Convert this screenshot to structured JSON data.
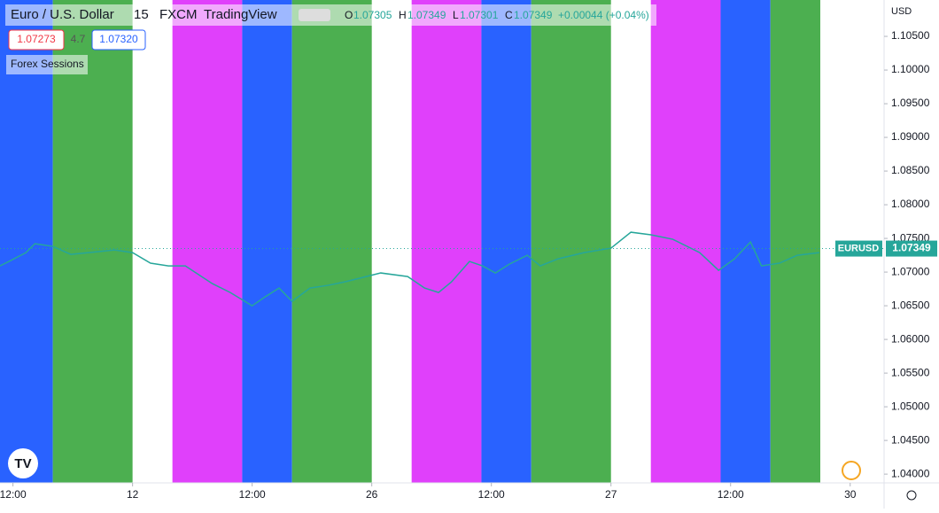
{
  "chart_data": {
    "type": "line",
    "symbol": "Euro / U.S. Dollar",
    "interval": "15",
    "exchange": "FXCM",
    "brand": "TradingView",
    "ohlc": {
      "o_label": "O",
      "o": "1.07305",
      "h_label": "H",
      "h": "1.07349",
      "l_label": "L",
      "l": "1.07301",
      "c_label": "C",
      "c": "1.07349",
      "change": "+0.00044 (+0.04%)"
    },
    "bid": "1.07273",
    "spread": "4.7",
    "ask": "1.07320",
    "indicator": "Forex Sessions",
    "currency": "USD",
    "ticker": "EURUSD",
    "last_price": 1.07349,
    "color": "#26a69a",
    "sessions": [
      {
        "start": -2,
        "end": 4,
        "color": "#2962ff"
      },
      {
        "start": 4,
        "end": 12,
        "color": "#4caf50"
      },
      {
        "start": 16,
        "end": 23,
        "color": "#e040fb"
      },
      {
        "start": 23,
        "end": 28,
        "color": "#2962ff"
      },
      {
        "start": 28,
        "end": 36,
        "color": "#4caf50"
      },
      {
        "start": 40,
        "end": 47,
        "color": "#e040fb"
      },
      {
        "start": 47,
        "end": 52,
        "color": "#2962ff"
      },
      {
        "start": 52,
        "end": 60,
        "color": "#4caf50"
      },
      {
        "start": 64,
        "end": 71,
        "color": "#e040fb"
      },
      {
        "start": 71,
        "end": 76,
        "color": "#2962ff"
      },
      {
        "start": 76,
        "end": 81,
        "color": "#4caf50"
      }
    ],
    "x": [
      -1.3,
      -0.4,
      1.3,
      2.2,
      4,
      5.8,
      7.6,
      10.2,
      12,
      13.8,
      15.6,
      17.3,
      20,
      21.8,
      24,
      25.3,
      26.7,
      28,
      29.8,
      31.6,
      33.3,
      35.1,
      36.9,
      39.6,
      41.3,
      42.7,
      44,
      45.8,
      47.1,
      48.4,
      49.8,
      51.6,
      52.9,
      54.7,
      57.3,
      60,
      62,
      64,
      66.2,
      68.9,
      70.8,
      72.4,
      74,
      75.1,
      76.9,
      78.7,
      80.9
    ],
    "values": [
      1.07092,
      1.07158,
      1.07289,
      1.07421,
      1.07382,
      1.07263,
      1.07289,
      1.07329,
      1.07289,
      1.07132,
      1.07092,
      1.07092,
      1.06829,
      1.06697,
      1.065,
      1.06632,
      1.06763,
      1.06566,
      1.06763,
      1.06803,
      1.06855,
      1.06921,
      1.06987,
      1.06934,
      1.06763,
      1.06697,
      1.06855,
      1.07158,
      1.07092,
      1.06987,
      1.07118,
      1.0725,
      1.07092,
      1.07197,
      1.07289,
      1.07355,
      1.07592,
      1.07553,
      1.07487,
      1.07289,
      1.07026,
      1.07197,
      1.07447,
      1.07092,
      1.07132,
      1.0725,
      1.07289
    ],
    "xlim": [
      -1.3,
      87.4
    ],
    "xticks": [
      {
        "value": 0,
        "label": "12:00"
      },
      12,
      {
        "value": 24,
        "label": "12:00"
      },
      {
        "value": 36,
        "label": "26"
      },
      {
        "value": 48,
        "label": "12:00"
      },
      {
        "value": 60,
        "label": "27"
      },
      {
        "value": 72,
        "label": "12:00"
      },
      {
        "value": 84,
        "label": "30"
      }
    ],
    "ylim": [
      1.0387,
      1.1104
    ],
    "yticks": [
      {
        "value": 1.04,
        "label": "1.04000"
      },
      {
        "value": 1.045,
        "label": "1.04500"
      },
      {
        "value": 1.05,
        "label": "1.05000"
      },
      {
        "value": 1.055,
        "label": "1.05500"
      },
      {
        "value": 1.06,
        "label": "1.06000"
      },
      {
        "value": 1.065,
        "label": "1.06500"
      },
      {
        "value": 1.07,
        "label": "1.07000"
      },
      {
        "value": 1.075,
        "label": "1.07500"
      },
      {
        "value": 1.08,
        "label": "1.08000"
      },
      {
        "value": 1.085,
        "label": "1.08500"
      },
      {
        "value": 1.09,
        "label": "1.09000"
      },
      {
        "value": 1.095,
        "label": "1.09500"
      },
      {
        "value": 1.1,
        "label": "1.10000"
      },
      {
        "value": 1.105,
        "label": "1.10500"
      }
    ]
  }
}
